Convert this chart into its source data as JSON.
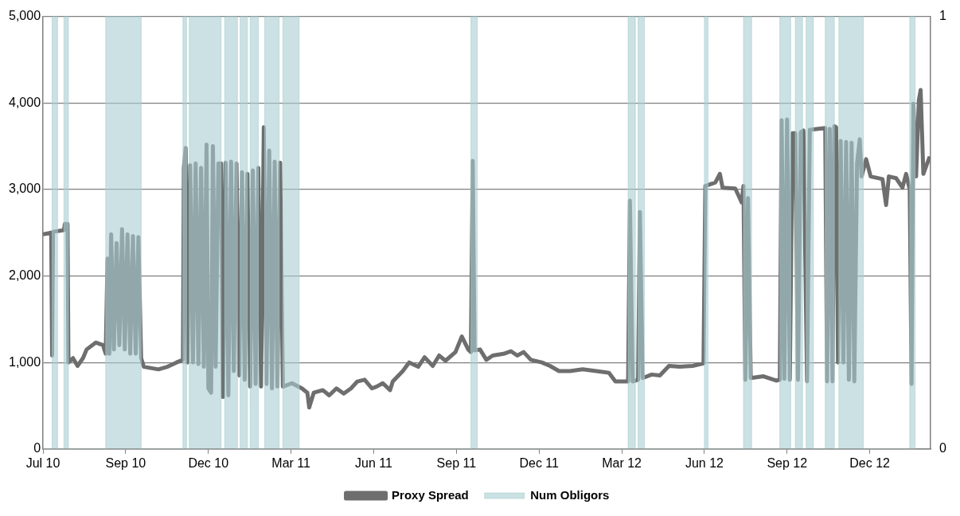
{
  "chart_data": {
    "type": "line",
    "legend": "bottom",
    "grid": "y",
    "marker": "none",
    "line_style": "solid",
    "xlim": [
      "2010-07-01",
      "2013-03-04"
    ],
    "xticks": [
      {
        "value": "2010-07-01",
        "label": "Jul 10"
      },
      {
        "value": "2010-09-30",
        "label": "Sep 10"
      },
      {
        "value": "2010-12-30",
        "label": "Dec 10"
      },
      {
        "value": "2011-03-31",
        "label": "Mar 11"
      },
      {
        "value": "2011-06-30",
        "label": "Jun 11"
      },
      {
        "value": "2011-09-29",
        "label": "Sep 11"
      },
      {
        "value": "2011-12-29",
        "label": "Dec 11"
      },
      {
        "value": "2012-03-29",
        "label": "Mar 12"
      },
      {
        "value": "2012-06-28",
        "label": "Jun 12"
      },
      {
        "value": "2012-09-27",
        "label": "Sep 12"
      },
      {
        "value": "2012-12-27",
        "label": "Dec 12"
      }
    ],
    "ylim": [
      0,
      5000
    ],
    "yticks": [
      {
        "value": 0,
        "label": "0"
      },
      {
        "value": 1000,
        "label": "1,000"
      },
      {
        "value": 2000,
        "label": "2,000"
      },
      {
        "value": 3000,
        "label": "3,000"
      },
      {
        "value": 4000,
        "label": "4,000"
      },
      {
        "value": 5000,
        "label": "5,000"
      }
    ],
    "y2lim": [
      0,
      1
    ],
    "y2ticks": [
      0,
      1
    ],
    "series": [
      {
        "name": "Proxy Spread",
        "color": "#6e6e6e",
        "x": [
          "2010-07-01",
          "2010-07-10",
          "2010-07-11",
          "2010-07-12",
          "2010-07-24",
          "2010-07-25",
          "2010-07-28",
          "2010-07-29",
          "2010-08-03",
          "2010-08-08",
          "2010-08-14",
          "2010-08-18",
          "2010-08-28",
          "2010-09-05",
          "2010-09-08",
          "2010-09-10",
          "2010-09-12",
          "2010-09-14",
          "2010-09-17",
          "2010-09-20",
          "2010-09-23",
          "2010-09-26",
          "2010-09-29",
          "2010-10-02",
          "2010-10-05",
          "2010-10-08",
          "2010-10-11",
          "2010-10-14",
          "2010-10-17",
          "2010-10-20",
          "2010-11-05",
          "2010-11-15",
          "2010-11-25",
          "2010-12-02",
          "2010-12-03",
          "2010-12-05",
          "2010-12-07",
          "2010-12-10",
          "2010-12-13",
          "2010-12-16",
          "2010-12-19",
          "2010-12-22",
          "2010-12-25",
          "2010-12-28",
          "2010-12-30",
          "2011-01-02",
          "2011-01-04",
          "2011-01-07",
          "2011-01-10",
          "2011-01-13",
          "2011-01-15",
          "2011-01-18",
          "2011-01-21",
          "2011-01-24",
          "2011-01-27",
          "2011-01-30",
          "2011-02-02",
          "2011-02-05",
          "2011-02-08",
          "2011-02-11",
          "2011-02-14",
          "2011-02-17",
          "2011-02-20",
          "2011-02-23",
          "2011-02-26",
          "2011-03-01",
          "2011-03-04",
          "2011-03-07",
          "2011-03-10",
          "2011-03-13",
          "2011-03-16",
          "2011-03-19",
          "2011-03-22",
          "2011-04-01",
          "2011-04-12",
          "2011-04-18",
          "2011-04-20",
          "2011-04-25",
          "2011-05-05",
          "2011-05-12",
          "2011-05-20",
          "2011-05-28",
          "2011-06-05",
          "2011-06-12",
          "2011-06-20",
          "2011-06-28",
          "2011-07-03",
          "2011-07-10",
          "2011-07-18",
          "2011-07-21",
          "2011-08-01",
          "2011-08-08",
          "2011-08-18",
          "2011-08-25",
          "2011-09-03",
          "2011-09-10",
          "2011-09-17",
          "2011-09-28",
          "2011-10-05",
          "2011-10-12",
          "2011-10-15",
          "2011-10-17",
          "2011-10-19",
          "2011-10-25",
          "2011-11-01",
          "2011-11-08",
          "2011-11-20",
          "2011-11-28",
          "2011-12-05",
          "2011-12-12",
          "2011-12-20",
          "2012-01-01",
          "2012-01-10",
          "2012-01-20",
          "2012-02-01",
          "2012-02-15",
          "2012-03-01",
          "2012-03-15",
          "2012-03-22",
          "2012-04-05",
          "2012-04-07",
          "2012-04-10",
          "2012-04-16",
          "2012-04-18",
          "2012-04-21",
          "2012-05-01",
          "2012-05-10",
          "2012-05-20",
          "2012-06-01",
          "2012-06-15",
          "2012-06-27",
          "2012-06-29",
          "2012-07-10",
          "2012-07-15",
          "2012-07-18",
          "2012-08-01",
          "2012-08-08",
          "2012-08-10",
          "2012-08-12",
          "2012-08-15",
          "2012-08-18",
          "2012-09-01",
          "2012-09-15",
          "2012-09-19",
          "2012-09-21",
          "2012-09-24",
          "2012-09-27",
          "2012-09-30",
          "2012-10-03",
          "2012-10-06",
          "2012-10-09",
          "2012-10-12",
          "2012-10-15",
          "2012-10-19",
          "2012-10-22",
          "2012-11-08",
          "2012-11-10",
          "2012-11-13",
          "2012-11-16",
          "2012-11-18",
          "2012-11-20",
          "2012-11-22",
          "2012-11-25",
          "2012-11-28",
          "2012-12-01",
          "2012-12-04",
          "2012-12-07",
          "2012-12-10",
          "2012-12-13",
          "2012-12-16",
          "2012-12-18",
          "2012-12-23",
          "2012-12-28",
          "2013-01-10",
          "2013-01-14",
          "2013-01-17",
          "2013-01-25",
          "2013-02-01",
          "2013-02-05",
          "2013-02-09",
          "2013-02-11",
          "2013-02-13",
          "2013-02-16",
          "2013-02-19",
          "2013-02-21",
          "2013-02-24",
          "2013-03-03"
        ],
        "values": [
          2480,
          2500,
          1080,
          2510,
          2530,
          2600,
          2600,
          1000,
          1050,
          960,
          1050,
          1150,
          1230,
          1200,
          1100,
          2200,
          1100,
          2480,
          1150,
          2380,
          1200,
          2540,
          1150,
          2480,
          1100,
          2460,
          1100,
          2450,
          1050,
          950,
          920,
          950,
          1000,
          1030,
          3250,
          3480,
          1000,
          3280,
          1000,
          3300,
          980,
          3250,
          950,
          3520,
          700,
          650,
          3500,
          950,
          3300,
          3300,
          600,
          3310,
          620,
          3320,
          900,
          3300,
          850,
          3200,
          800,
          3180,
          720,
          3220,
          750,
          3250,
          720,
          3720,
          750,
          3450,
          700,
          3320,
          720,
          3310,
          720,
          760,
          700,
          650,
          480,
          650,
          680,
          620,
          700,
          640,
          700,
          780,
          800,
          700,
          720,
          760,
          680,
          780,
          900,
          1000,
          950,
          1060,
          960,
          1080,
          1020,
          1120,
          1300,
          1150,
          1120,
          3330,
          1140,
          1150,
          1030,
          1080,
          1100,
          1130,
          1080,
          1120,
          1030,
          1000,
          960,
          900,
          900,
          920,
          900,
          880,
          780,
          780,
          2870,
          780,
          800,
          2740,
          820,
          860,
          850,
          960,
          950,
          960,
          990,
          3040,
          3080,
          3180,
          3020,
          3010,
          2850,
          3040,
          800,
          2900,
          820,
          840,
          790,
          800,
          3800,
          810,
          3810,
          800,
          3650,
          3650,
          800,
          3660,
          3680,
          780,
          3690,
          3710,
          780,
          3700,
          780,
          3730,
          3720,
          1000,
          3560,
          1000,
          3550,
          800,
          3540,
          780,
          3300,
          3580,
          3150,
          3350,
          3150,
          3120,
          2820,
          3150,
          3130,
          3020,
          3180,
          3000,
          750,
          3990,
          3150,
          4030,
          4150,
          3180,
          3380
        ]
      },
      {
        "name": "Num Obligors",
        "type": "step",
        "axis": "y2",
        "color": "#a9cdd1",
        "x": [
          "2010-07-01",
          "2010-07-11",
          "2010-07-17",
          "2010-07-24",
          "2010-07-29",
          "2010-09-08",
          "2010-10-17",
          "2010-12-02",
          "2010-12-06",
          "2010-12-09",
          "2011-01-13",
          "2011-01-17",
          "2011-01-31",
          "2011-02-03",
          "2011-02-11",
          "2011-02-14",
          "2011-02-23",
          "2011-03-02",
          "2011-03-18",
          "2011-03-22",
          "2011-04-09",
          "2011-10-15",
          "2011-10-22",
          "2012-04-05",
          "2012-04-13",
          "2012-04-16",
          "2012-04-23",
          "2012-06-28",
          "2012-07-02",
          "2012-08-10",
          "2012-08-19",
          "2012-09-19",
          "2012-10-01",
          "2012-10-06",
          "2012-10-14",
          "2012-10-18",
          "2012-10-26",
          "2012-11-08",
          "2012-11-18",
          "2012-11-23",
          "2012-12-20",
          "2013-02-09",
          "2013-02-15"
        ],
        "values": [
          0,
          1,
          0,
          1,
          0,
          1,
          0,
          1,
          0,
          1,
          0,
          1,
          0,
          1,
          0,
          1,
          0,
          1,
          0,
          1,
          0,
          1,
          0,
          1,
          0,
          1,
          0,
          1,
          0,
          1,
          0,
          1,
          0,
          1,
          0,
          1,
          0,
          1,
          0,
          1,
          0,
          1,
          0
        ]
      }
    ]
  }
}
